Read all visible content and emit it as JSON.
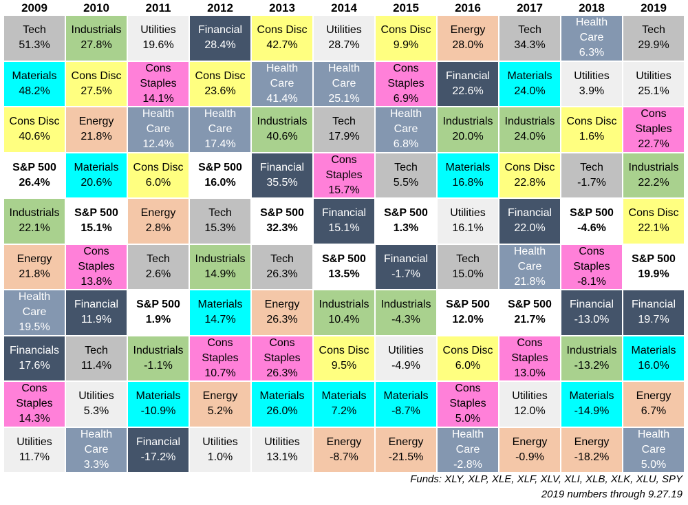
{
  "chart_data": {
    "type": "table",
    "years": [
      "2009",
      "2010",
      "2011",
      "2012",
      "2013",
      "2014",
      "2015",
      "2016",
      "2017",
      "2018",
      "2019"
    ],
    "sector_colors": {
      "Tech": "#c0c0c0",
      "Industrials": "#a9d18e",
      "Utilities": "#efefef",
      "Financial": "#44546a",
      "Cons Disc": "#ffff80",
      "Energy": "#f4c7a8",
      "Health Care": "#8497b0",
      "Materials": "#00ffff",
      "Cons Staples": "#ff80d9",
      "S&P 500": "#ffffff"
    },
    "columns": [
      [
        {
          "sector": "Tech",
          "label": "Tech",
          "value": "51.3%"
        },
        {
          "sector": "Materials",
          "label": "Materials",
          "value": "48.2%"
        },
        {
          "sector": "Cons Disc",
          "label": "Cons Disc",
          "value": "40.6%"
        },
        {
          "sector": "S&P 500",
          "label": "S&P 500",
          "value": "26.4%"
        },
        {
          "sector": "Industrials",
          "label": "Industrials",
          "value": "22.1%"
        },
        {
          "sector": "Energy",
          "label": "Energy",
          "value": "21.8%"
        },
        {
          "sector": "Health Care",
          "label": "Health\nCare",
          "value": "19.5%"
        },
        {
          "sector": "Financial",
          "label": "Financials",
          "value": "17.6%"
        },
        {
          "sector": "Cons Staples",
          "label": "Cons\nStaples",
          "value": "14.3%"
        },
        {
          "sector": "Utilities",
          "label": "Utilities",
          "value": "11.7%"
        }
      ],
      [
        {
          "sector": "Industrials",
          "label": "Industrials",
          "value": "27.8%"
        },
        {
          "sector": "Cons Disc",
          "label": "Cons Disc",
          "value": "27.5%"
        },
        {
          "sector": "Energy",
          "label": "Energy",
          "value": "21.8%"
        },
        {
          "sector": "Materials",
          "label": "Materials",
          "value": "20.6%"
        },
        {
          "sector": "S&P 500",
          "label": "S&P 500",
          "value": "15.1%"
        },
        {
          "sector": "Cons Staples",
          "label": "Cons\nStaples",
          "value": "13.8%"
        },
        {
          "sector": "Financial",
          "label": "Financial",
          "value": "11.9%"
        },
        {
          "sector": "Tech",
          "label": "Tech",
          "value": "11.4%"
        },
        {
          "sector": "Utilities",
          "label": "Utilities",
          "value": "5.3%"
        },
        {
          "sector": "Health Care",
          "label": "Health\nCare",
          "value": "3.3%"
        }
      ],
      [
        {
          "sector": "Utilities",
          "label": "Utilities",
          "value": "19.6%"
        },
        {
          "sector": "Cons Staples",
          "label": "Cons\nStaples",
          "value": "14.1%"
        },
        {
          "sector": "Health Care",
          "label": "Health\nCare",
          "value": "12.4%"
        },
        {
          "sector": "Cons Disc",
          "label": "Cons Disc",
          "value": "6.0%"
        },
        {
          "sector": "Energy",
          "label": "Energy",
          "value": "2.8%"
        },
        {
          "sector": "Tech",
          "label": "Tech",
          "value": "2.6%"
        },
        {
          "sector": "S&P 500",
          "label": "S&P 500",
          "value": "1.9%"
        },
        {
          "sector": "Industrials",
          "label": "Industrials",
          "value": "-1.1%"
        },
        {
          "sector": "Materials",
          "label": "Materials",
          "value": "-10.9%"
        },
        {
          "sector": "Financial",
          "label": "Financial",
          "value": "-17.2%"
        }
      ],
      [
        {
          "sector": "Financial",
          "label": "Financial",
          "value": "28.4%"
        },
        {
          "sector": "Cons Disc",
          "label": "Cons Disc",
          "value": "23.6%"
        },
        {
          "sector": "Health Care",
          "label": "Health\nCare",
          "value": "17.4%"
        },
        {
          "sector": "S&P 500",
          "label": "S&P 500",
          "value": "16.0%"
        },
        {
          "sector": "Tech",
          "label": "Tech",
          "value": "15.3%"
        },
        {
          "sector": "Industrials",
          "label": "Industrials",
          "value": "14.9%"
        },
        {
          "sector": "Materials",
          "label": "Materials",
          "value": "14.7%"
        },
        {
          "sector": "Cons Staples",
          "label": "Cons\nStaples",
          "value": "10.7%"
        },
        {
          "sector": "Energy",
          "label": "Energy",
          "value": "5.2%"
        },
        {
          "sector": "Utilities",
          "label": "Utilities",
          "value": "1.0%"
        }
      ],
      [
        {
          "sector": "Cons Disc",
          "label": "Cons Disc",
          "value": "42.7%"
        },
        {
          "sector": "Health Care",
          "label": "Health\nCare",
          "value": "41.4%"
        },
        {
          "sector": "Industrials",
          "label": "Industrials",
          "value": "40.6%"
        },
        {
          "sector": "Financial",
          "label": "Financial",
          "value": "35.5%"
        },
        {
          "sector": "S&P 500",
          "label": "S&P 500",
          "value": "32.3%"
        },
        {
          "sector": "Tech",
          "label": "Tech",
          "value": "26.3%"
        },
        {
          "sector": "Energy",
          "label": "Energy",
          "value": "26.3%"
        },
        {
          "sector": "Cons Staples",
          "label": "Cons\nStaples",
          "value": "26.3%"
        },
        {
          "sector": "Materials",
          "label": "Materials",
          "value": "26.0%"
        },
        {
          "sector": "Utilities",
          "label": "Utilities",
          "value": "13.1%"
        }
      ],
      [
        {
          "sector": "Utilities",
          "label": "Utilities",
          "value": "28.7%"
        },
        {
          "sector": "Health Care",
          "label": "Health\nCare",
          "value": "25.1%"
        },
        {
          "sector": "Tech",
          "label": "Tech",
          "value": "17.9%"
        },
        {
          "sector": "Cons Staples",
          "label": "Cons\nStaples",
          "value": "15.7%"
        },
        {
          "sector": "Financial",
          "label": "Financial",
          "value": "15.1%"
        },
        {
          "sector": "S&P 500",
          "label": "S&P 500",
          "value": "13.5%"
        },
        {
          "sector": "Industrials",
          "label": "Industrials",
          "value": "10.4%"
        },
        {
          "sector": "Cons Disc",
          "label": "Cons Disc",
          "value": "9.5%"
        },
        {
          "sector": "Materials",
          "label": "Materials",
          "value": "7.2%"
        },
        {
          "sector": "Energy",
          "label": "Energy",
          "value": "-8.7%"
        }
      ],
      [
        {
          "sector": "Cons Disc",
          "label": "Cons Disc",
          "value": "9.9%"
        },
        {
          "sector": "Cons Staples",
          "label": "Cons\nStaples",
          "value": "6.9%"
        },
        {
          "sector": "Health Care",
          "label": "Health\nCare",
          "value": "6.8%"
        },
        {
          "sector": "Tech",
          "label": "Tech",
          "value": "5.5%"
        },
        {
          "sector": "S&P 500",
          "label": "S&P 500",
          "value": "1.3%"
        },
        {
          "sector": "Financial",
          "label": "Financial",
          "value": "-1.7%"
        },
        {
          "sector": "Industrials",
          "label": "Industrials",
          "value": "-4.3%"
        },
        {
          "sector": "Utilities",
          "label": "Utilities",
          "value": "-4.9%"
        },
        {
          "sector": "Materials",
          "label": "Materials",
          "value": "-8.7%"
        },
        {
          "sector": "Energy",
          "label": "Energy",
          "value": "-21.5%"
        }
      ],
      [
        {
          "sector": "Energy",
          "label": "Energy",
          "value": "28.0%"
        },
        {
          "sector": "Financial",
          "label": "Financial",
          "value": "22.6%"
        },
        {
          "sector": "Industrials",
          "label": "Industrials",
          "value": "20.0%"
        },
        {
          "sector": "Materials",
          "label": "Materials",
          "value": "16.8%"
        },
        {
          "sector": "Utilities",
          "label": "Utilities",
          "value": "16.1%"
        },
        {
          "sector": "Tech",
          "label": "Tech",
          "value": "15.0%"
        },
        {
          "sector": "S&P 500",
          "label": "S&P 500",
          "value": "12.0%"
        },
        {
          "sector": "Cons Disc",
          "label": "Cons Disc",
          "value": "6.0%"
        },
        {
          "sector": "Cons Staples",
          "label": "Cons\nStaples",
          "value": "5.0%"
        },
        {
          "sector": "Health Care",
          "label": "Health\nCare",
          "value": "-2.8%"
        }
      ],
      [
        {
          "sector": "Tech",
          "label": "Tech",
          "value": "34.3%"
        },
        {
          "sector": "Materials",
          "label": "Materials",
          "value": "24.0%"
        },
        {
          "sector": "Industrials",
          "label": "Industrials",
          "value": "24.0%"
        },
        {
          "sector": "Cons Disc",
          "label": "Cons Disc",
          "value": "22.8%"
        },
        {
          "sector": "Financial",
          "label": "Financial",
          "value": "22.0%"
        },
        {
          "sector": "Health Care",
          "label": "Health\nCare",
          "value": "21.8%"
        },
        {
          "sector": "S&P 500",
          "label": "S&P 500",
          "value": "21.7%"
        },
        {
          "sector": "Cons Staples",
          "label": "Cons\nStaples",
          "value": "13.0%"
        },
        {
          "sector": "Utilities",
          "label": "Utilities",
          "value": "12.0%"
        },
        {
          "sector": "Energy",
          "label": "Energy",
          "value": "-0.9%"
        }
      ],
      [
        {
          "sector": "Health Care",
          "label": "Health\nCare",
          "value": "6.3%"
        },
        {
          "sector": "Utilities",
          "label": "Utilities",
          "value": "3.9%"
        },
        {
          "sector": "Cons Disc",
          "label": "Cons Disc",
          "value": "1.6%"
        },
        {
          "sector": "Tech",
          "label": "Tech",
          "value": "-1.7%"
        },
        {
          "sector": "S&P 500",
          "label": "S&P 500",
          "value": "-4.6%"
        },
        {
          "sector": "Cons Staples",
          "label": "Cons\nStaples",
          "value": "-8.1%"
        },
        {
          "sector": "Financial",
          "label": "Financial",
          "value": "-13.0%"
        },
        {
          "sector": "Industrials",
          "label": "Industrials",
          "value": "-13.2%"
        },
        {
          "sector": "Materials",
          "label": "Materials",
          "value": "-14.9%"
        },
        {
          "sector": "Energy",
          "label": "Energy",
          "value": "-18.2%"
        }
      ],
      [
        {
          "sector": "Tech",
          "label": "Tech",
          "value": "29.9%"
        },
        {
          "sector": "Utilities",
          "label": "Utilities",
          "value": "25.1%"
        },
        {
          "sector": "Cons Staples",
          "label": "Cons\nStaples",
          "value": "22.7%"
        },
        {
          "sector": "Industrials",
          "label": "Industrials",
          "value": "22.2%"
        },
        {
          "sector": "Cons Disc",
          "label": "Cons Disc",
          "value": "22.1%"
        },
        {
          "sector": "S&P 500",
          "label": "S&P 500",
          "value": "19.9%"
        },
        {
          "sector": "Financial",
          "label": "Financial",
          "value": "19.7%"
        },
        {
          "sector": "Materials",
          "label": "Materials",
          "value": "16.0%"
        },
        {
          "sector": "Energy",
          "label": "Energy",
          "value": "6.7%"
        },
        {
          "sector": "Health Care",
          "label": "Health\nCare",
          "value": "5.0%"
        }
      ]
    ]
  },
  "footer": {
    "funds": "Funds:  XLY, XLP, XLE, XLF, XLV, XLI, XLB, XLK, XLU, SPY",
    "note": "2019 numbers through 9.27.19"
  }
}
